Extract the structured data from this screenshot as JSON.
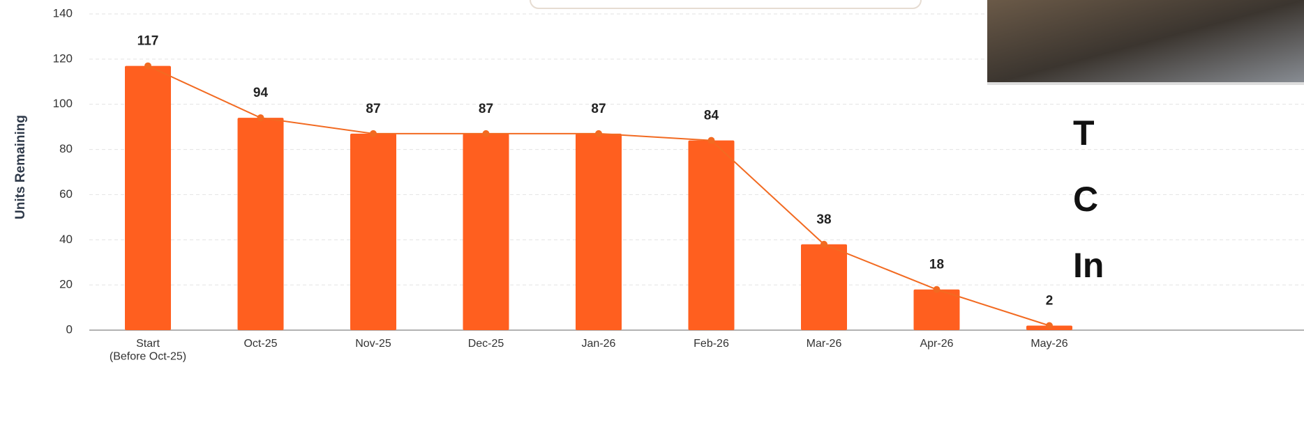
{
  "chart_data": {
    "type": "bar",
    "y_label": "Units Remaining",
    "categories": [
      "Start\n(Before Oct-25)",
      "Oct-25",
      "Nov-25",
      "Dec-25",
      "Jan-26",
      "Feb-26",
      "Mar-26",
      "Apr-26",
      "May-26"
    ],
    "values": [
      117,
      94,
      87,
      87,
      87,
      84,
      38,
      18,
      2
    ],
    "color": "#ff5f1f",
    "line_color": "#f26a21",
    "ylim": [
      0,
      140
    ],
    "yticks": [
      0,
      20,
      40,
      60,
      80,
      100,
      120,
      140
    ],
    "grid": true
  },
  "overlay_text": [
    "T",
    "C",
    "In"
  ]
}
